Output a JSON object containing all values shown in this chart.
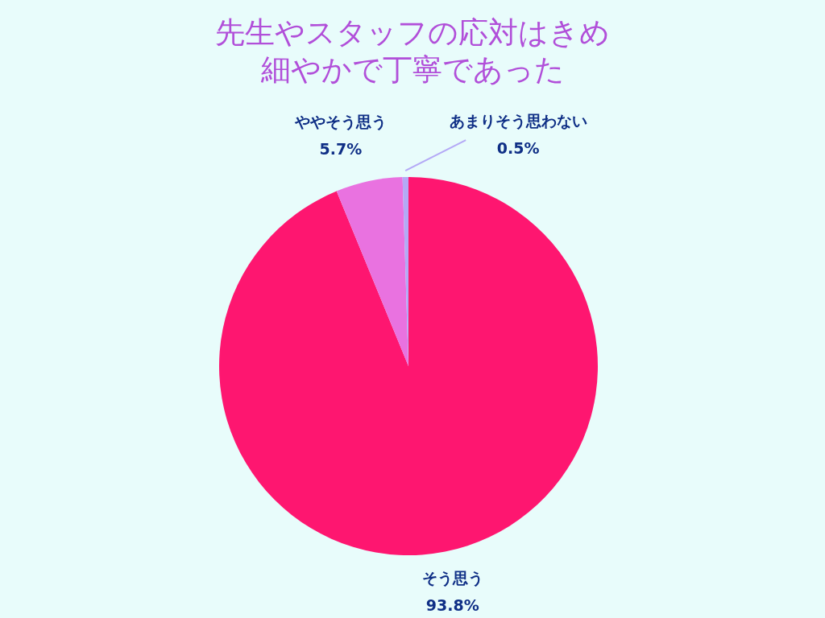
{
  "chart_data": {
    "type": "pie",
    "title": "先生やスタッフの応対はきめ細やかで丁寧であった",
    "categories": [
      "そう思う",
      "ややそう思う",
      "あまりそう思わない"
    ],
    "values": [
      93.8,
      5.7,
      0.5
    ],
    "colors": [
      "#fe1670",
      "#e972e0",
      "#b4a9f6"
    ],
    "value_labels": [
      "93.8%",
      "5.7%",
      "0.5%"
    ]
  }
}
